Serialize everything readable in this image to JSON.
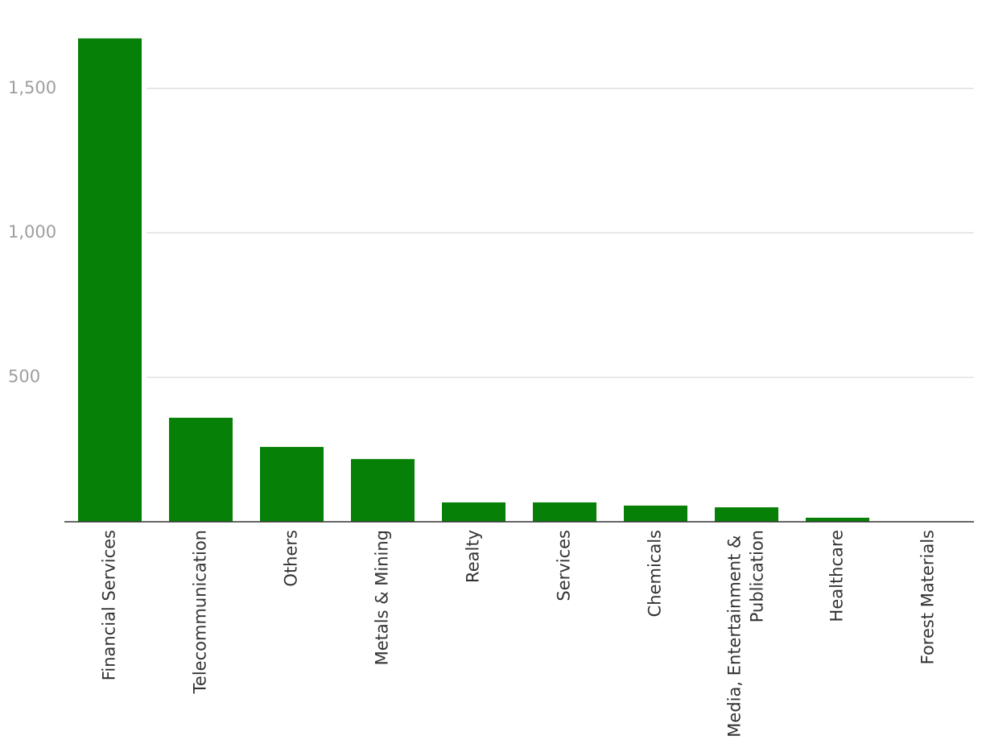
{
  "chart_data": {
    "type": "bar",
    "categories": [
      "Financial Services",
      "Telecommunication",
      "Others",
      "Metals & Mining",
      "Realty",
      "Services",
      "Chemicals",
      "Media, Entertainment & Publication",
      "Healthcare",
      "Forest Materials"
    ],
    "values": [
      1673,
      360,
      259,
      217,
      67,
      67,
      56,
      50,
      14,
      1
    ],
    "color": "#068006",
    "ylim": [
      0,
      1700
    ],
    "yticks": [
      500,
      {
        "value": 1000,
        "label": "1,000"
      },
      {
        "value": 1500,
        "label": "1,500"
      }
    ],
    "grid": true
  }
}
